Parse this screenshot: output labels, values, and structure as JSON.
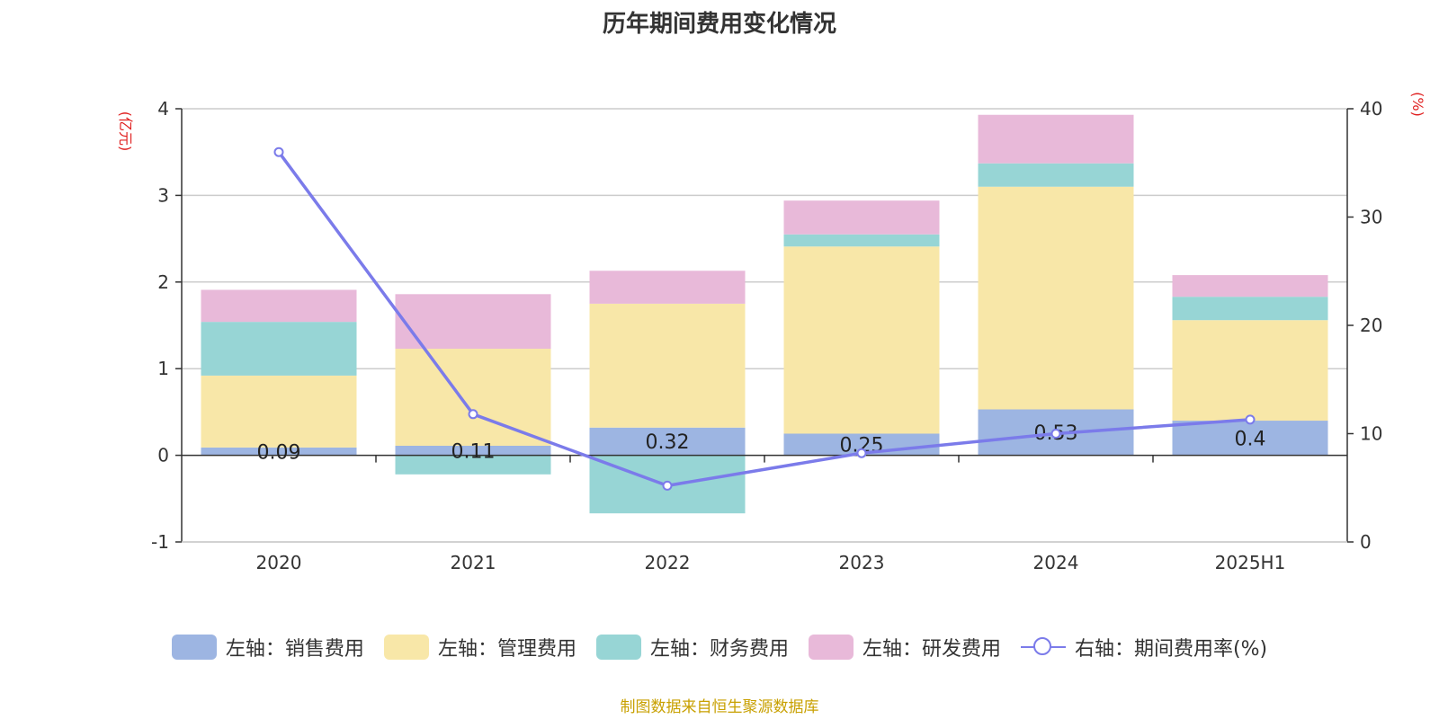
{
  "chart_data": {
    "type": "bar",
    "title": "历年期间费用变化情况",
    "categories": [
      "2020",
      "2021",
      "2022",
      "2023",
      "2024",
      "2025H1"
    ],
    "left_axis": {
      "unit": "(亿元)",
      "ylim": [
        -1,
        4
      ],
      "ticks": [
        "-1",
        "0",
        "1",
        "2",
        "3",
        "4"
      ]
    },
    "right_axis": {
      "unit": "(%)",
      "ylim": [
        0,
        40
      ],
      "ticks": [
        "0",
        "10",
        "20",
        "30",
        "40"
      ]
    },
    "series": [
      {
        "name": "左轴：销售费用",
        "kind": "stacked-bar",
        "color": "#9db5e2",
        "values": [
          0.09,
          0.11,
          0.32,
          0.25,
          0.53,
          0.4
        ],
        "labels": [
          "0.09",
          "0.11",
          "0.32",
          "0.25",
          "0.53",
          "0.4"
        ]
      },
      {
        "name": "左轴：管理费用",
        "kind": "stacked-bar",
        "color": "#f8e7a8",
        "values": [
          0.83,
          1.12,
          1.43,
          2.16,
          2.57,
          1.16
        ]
      },
      {
        "name": "左轴：财务费用",
        "kind": "stacked-bar",
        "color": "#97d5d5",
        "values": [
          0.62,
          -0.22,
          -0.67,
          0.14,
          0.27,
          0.27
        ]
      },
      {
        "name": "左轴：研发费用",
        "kind": "stacked-bar",
        "color": "#e8b9d9",
        "values": [
          0.37,
          0.63,
          0.38,
          0.39,
          0.56,
          0.25
        ]
      },
      {
        "name": "右轴：期间费用率(%)",
        "kind": "line",
        "color": "#7b7bea",
        "values": [
          36,
          11.8,
          5.2,
          8.2,
          10.0,
          11.3
        ]
      }
    ],
    "grid": true,
    "legend_position": "bottom"
  },
  "legend": [
    {
      "label": "左轴：销售费用",
      "color": "#9db5e2"
    },
    {
      "label": "左轴：管理费用",
      "color": "#f8e7a8"
    },
    {
      "label": "左轴：财务费用",
      "color": "#97d5d5"
    },
    {
      "label": "左轴：研发费用",
      "color": "#e8b9d9"
    },
    {
      "label": "右轴：期间费用率(%)",
      "color": "#7b7bea"
    }
  ],
  "source": "制图数据来自恒生聚源数据库"
}
